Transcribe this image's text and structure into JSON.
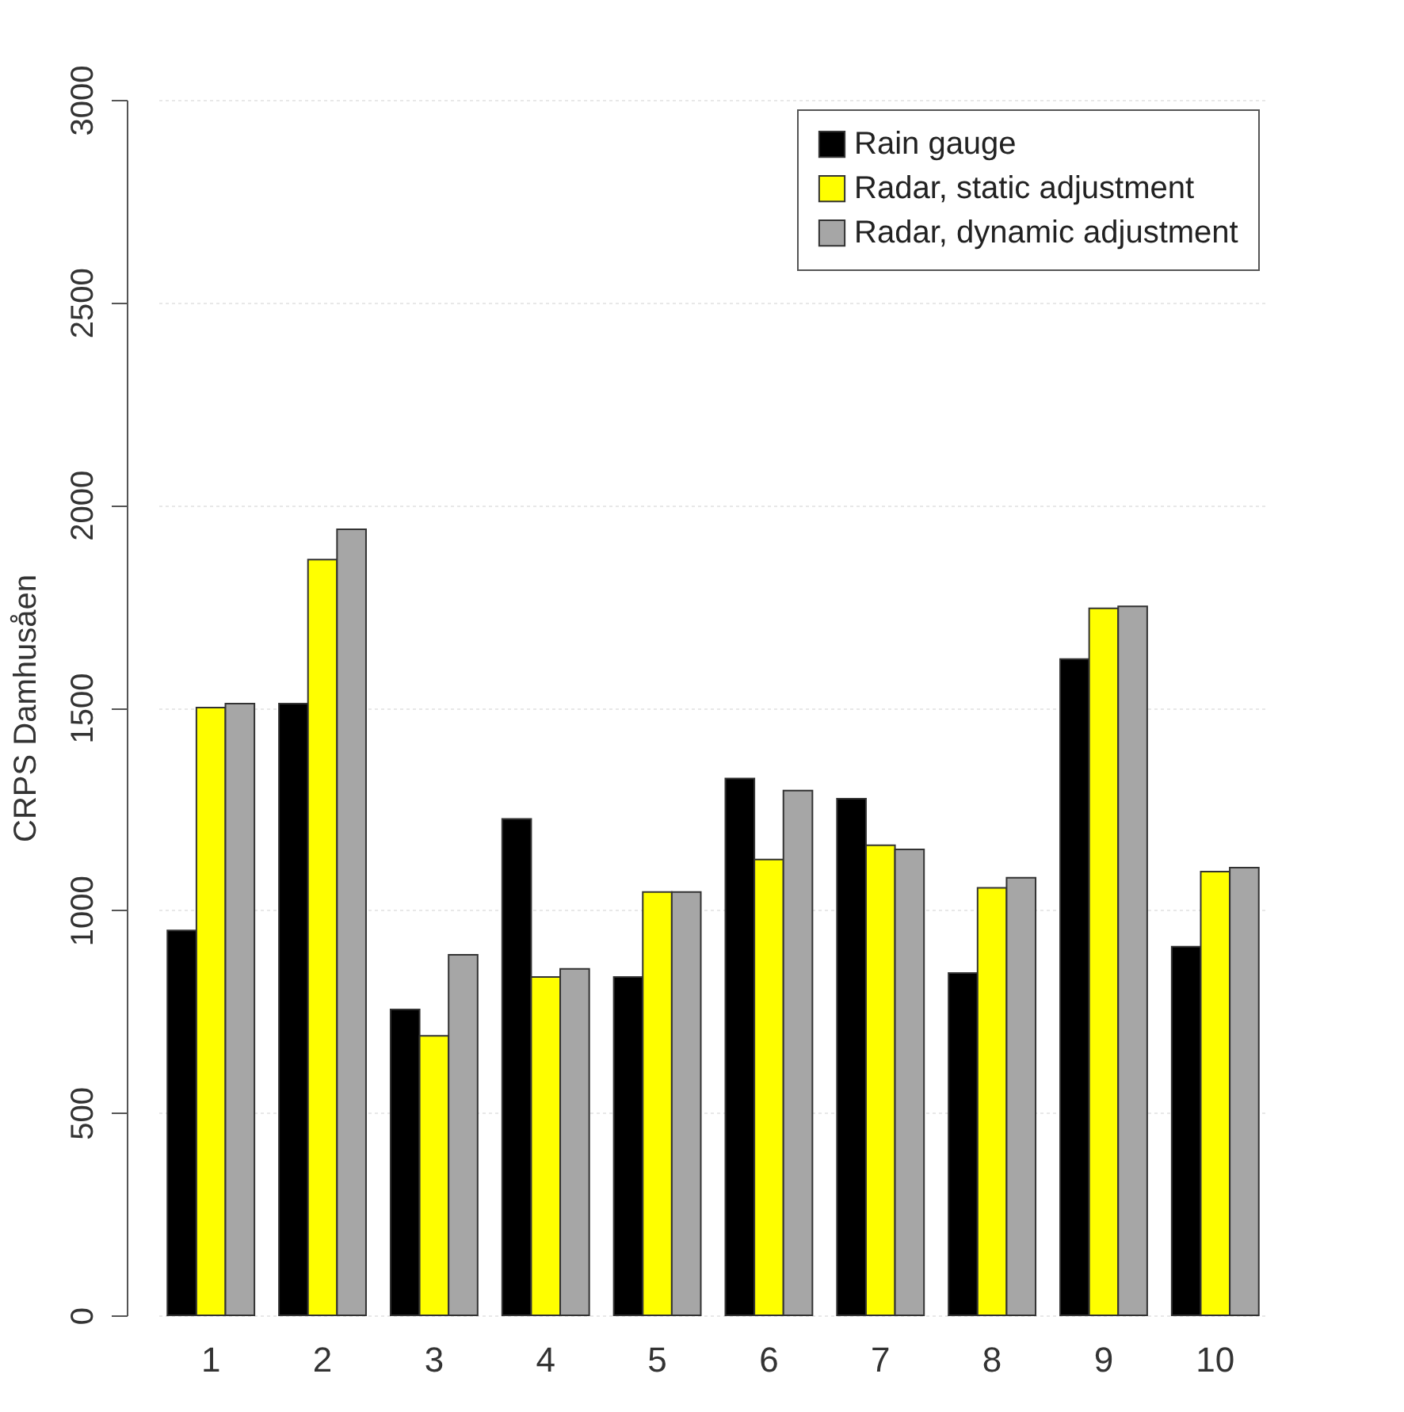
{
  "chart_data": {
    "type": "bar",
    "ylabel": "CRPS Damhusåen",
    "categories": [
      "1",
      "2",
      "3",
      "4",
      "5",
      "6",
      "7",
      "8",
      "9",
      "10"
    ],
    "series": [
      {
        "name": "Rain gauge",
        "color": "#000000",
        "values": [
          950,
          1510,
          755,
          1225,
          835,
          1325,
          1275,
          845,
          1620,
          910
        ]
      },
      {
        "name": "Radar, static adjustment",
        "color": "#ffff00",
        "values": [
          1500,
          1865,
          690,
          835,
          1045,
          1125,
          1160,
          1055,
          1745,
          1095
        ]
      },
      {
        "name": "Radar, dynamic adjustment",
        "color": "#a6a6a6",
        "values": [
          1510,
          1940,
          890,
          855,
          1045,
          1295,
          1150,
          1080,
          1750,
          1105
        ]
      }
    ],
    "ylim": [
      0,
      3000
    ],
    "yticks": [
      0,
      500,
      1000,
      1500,
      2000,
      2500,
      3000
    ],
    "grid": "y",
    "legend": "top right"
  }
}
